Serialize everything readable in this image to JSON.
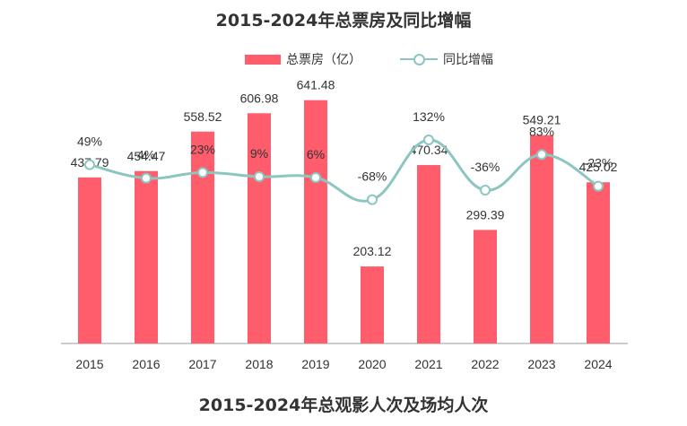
{
  "titles": {
    "main": "2015-2024年总票房及同比增幅",
    "next": "2015-2024年总观影人次及场均人次"
  },
  "colors": {
    "bar": "#ff5d6c",
    "line": "#8cc6c0",
    "axis": "#999999"
  },
  "chart_data": {
    "type": "bar+line",
    "title": "2015-2024年总票房及同比增幅",
    "categories": [
      "2015",
      "2016",
      "2017",
      "2018",
      "2019",
      "2020",
      "2021",
      "2022",
      "2023",
      "2024"
    ],
    "series": [
      {
        "name": "总票房（亿）",
        "type": "bar",
        "values": [
          437.79,
          454.47,
          558.52,
          606.98,
          641.48,
          203.12,
          470.34,
          299.39,
          549.21,
          425.02
        ],
        "labels": [
          "437.79",
          "454.47",
          "558.52",
          "606.98",
          "641.48",
          "203.12",
          "470.34",
          "299.39",
          "549.21",
          "425.02"
        ]
      },
      {
        "name": "同比增幅",
        "type": "line",
        "values": [
          49,
          4,
          23,
          9,
          6,
          -68,
          132,
          -36,
          83,
          -23
        ],
        "labels": [
          "49%",
          "4%",
          "23%",
          "9%",
          "6%",
          "-68%",
          "132%",
          "-36%",
          "83%",
          "-23%"
        ]
      }
    ],
    "ylim_bar": [
      0,
      740
    ],
    "ylim_line": [
      -150,
      300
    ],
    "legend": "top-center"
  }
}
